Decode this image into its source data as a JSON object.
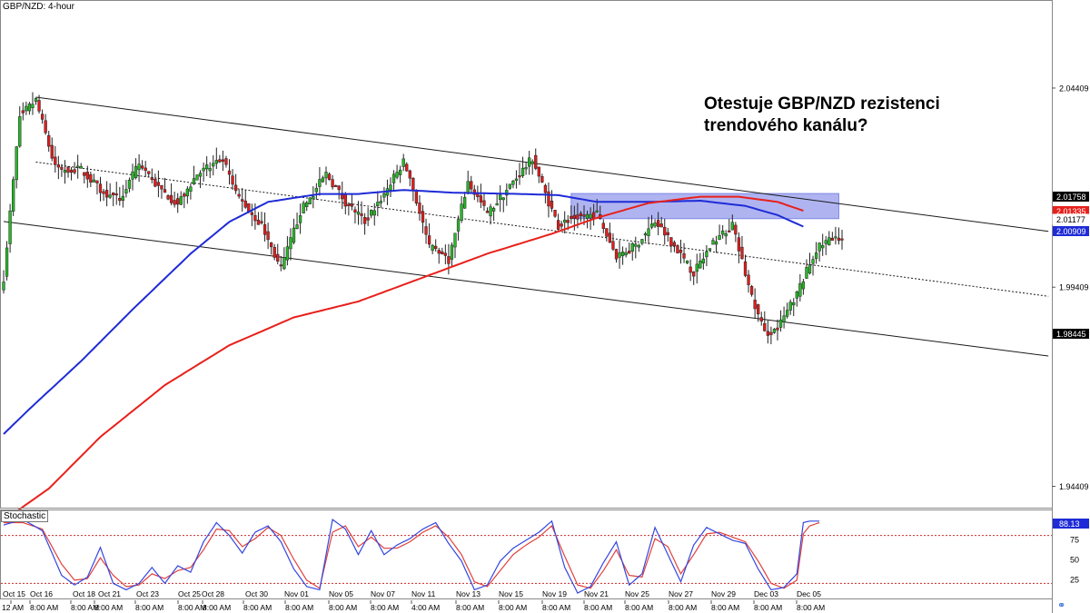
{
  "header": {
    "ticker": "GBP/NZD: 4-hour"
  },
  "annotation": {
    "lines": [
      "Otestuje GBP/NZD rezistenci",
      "trendového kanálu?"
    ]
  },
  "colors": {
    "up_candle": "#27b827",
    "down_candle": "#e01d1d",
    "ma_blue": "#1e2bd6",
    "ma_red": "#e8201b",
    "zone": "#9da3ee",
    "stoch_k": "#3346e0",
    "stoch_d": "#e0413c"
  },
  "price_axis": {
    "labels": [
      "2.04409",
      "1.99409",
      "1.94409"
    ],
    "tags": [
      {
        "text": "2.01758",
        "value": 2.01758,
        "bg": "#000000",
        "fg": "#ffffff"
      },
      {
        "text": "2.01335",
        "value": 2.01335,
        "bg": "#e8201b",
        "fg": "#ffffff"
      },
      {
        "text": "2.01177",
        "value": 2.01177,
        "bg": "#ffffff",
        "fg": "#000000"
      },
      {
        "text": "2.00909",
        "value": 2.00909,
        "bg": "#1e2bd6",
        "fg": "#ffffff"
      },
      {
        "text": "1.98445",
        "value": 1.98445,
        "bg": "#000000",
        "fg": "#ffffff"
      }
    ]
  },
  "stochastic": {
    "title": "Stochastic",
    "levels": [
      "75",
      "50",
      "25"
    ],
    "tags": [
      {
        "text": "88.13",
        "value": 88.13,
        "bg": "#1e2bd6",
        "fg": "#ffffff"
      }
    ]
  },
  "time_axis": {
    "date_labels": [
      "Oct 15",
      "Oct 16",
      "Oct 18",
      "Oct 21",
      "Oct 23",
      "Oct 25",
      "Oct 28",
      "Oct 30",
      "Nov 01",
      "Nov 05",
      "Nov 07",
      "Nov 11",
      "Nov 13",
      "Nov 15",
      "Nov 19",
      "Nov 21",
      "Nov 25",
      "Nov 27",
      "Nov 29",
      "Dec 03",
      "Dec 05"
    ],
    "time_labels": [
      "12 AM",
      "8:00 AM",
      "8:00 AM",
      "8:00 AM",
      "8:00 AM",
      "8:00 AM",
      "8:00 AM",
      "8:00 AM",
      "8:00 AM",
      "8:00 AM",
      "8:00 AM",
      "4:00 AM",
      "8:00 AM",
      "8:00 AM",
      "8:00 AM",
      "8:00 AM",
      "8:00 AM",
      "8:00 AM",
      "8:00 AM",
      "8:00 AM",
      "8:00 AM",
      "8:00 AM"
    ]
  },
  "chart_data": {
    "type": "candlestick",
    "title": "GBP/NZD: 4-hour",
    "ylim": [
      1.9385,
      2.0662
    ],
    "y_ticks": [
      2.04409,
      1.99409,
      1.94409
    ],
    "grid": false,
    "series": [
      {
        "name": "GBP/NZD",
        "type": "candlestick",
        "anchors": [
          [
            0,
            1.9965
          ],
          [
            5,
            2.037
          ],
          [
            10,
            2.041
          ],
          [
            16,
            2.024
          ],
          [
            24,
            2.0235
          ],
          [
            30,
            2.0185
          ],
          [
            36,
            2.016
          ],
          [
            42,
            2.025
          ],
          [
            48,
            2.019
          ],
          [
            54,
            2.015
          ],
          [
            60,
            2.0225
          ],
          [
            68,
            2.026
          ],
          [
            72,
            2.0175
          ],
          [
            80,
            2.0095
          ],
          [
            86,
            1.9985
          ],
          [
            92,
            2.013
          ],
          [
            100,
            2.0225
          ],
          [
            106,
            2.0155
          ],
          [
            112,
            2.0105
          ],
          [
            118,
            2.0175
          ],
          [
            124,
            2.0255
          ],
          [
            126,
            2.0215
          ],
          [
            132,
            2.004
          ],
          [
            138,
            2.001
          ],
          [
            144,
            2.0205
          ],
          [
            150,
            2.0125
          ],
          [
            156,
            2.0185
          ],
          [
            164,
            2.0265
          ],
          [
            168,
            2.0175
          ],
          [
            172,
            2.0095
          ],
          [
            176,
            2.0115
          ],
          [
            184,
            2.0125
          ],
          [
            190,
            2.002
          ],
          [
            196,
            2.0045
          ],
          [
            202,
            2.0105
          ],
          [
            208,
            2.0045
          ],
          [
            214,
            1.9975
          ],
          [
            220,
            2.0055
          ],
          [
            226,
            2.0095
          ],
          [
            232,
            1.9915
          ],
          [
            236,
            1.9825
          ],
          [
            240,
            1.9835
          ],
          [
            246,
            1.9925
          ],
          [
            252,
            2.0035
          ],
          [
            256,
            2.006
          ],
          [
            260,
            2.0055
          ]
        ]
      }
    ],
    "overlays": [
      {
        "name": "trend-channel-upper",
        "from": [
          10,
          2.0418
        ],
        "to": [
          324,
          2.0081
        ]
      },
      {
        "name": "trend-channel-middle",
        "from": [
          10,
          2.0255
        ],
        "to": [
          324,
          1.9918
        ]
      },
      {
        "name": "trend-channel-lower",
        "from": [
          0,
          2.0106
        ],
        "to": [
          324,
          1.9768
        ]
      },
      {
        "name": "resistance-zone",
        "x_range": [
          176,
          259
        ],
        "y_range": [
          2.0113,
          2.0176
        ]
      },
      {
        "name": "moving-average-blue",
        "anchors": [
          [
            0,
            1.9572
          ],
          [
            8,
            1.9635
          ],
          [
            24,
            1.9755
          ],
          [
            40,
            1.9885
          ],
          [
            58,
            2.0025
          ],
          [
            70,
            2.0105
          ],
          [
            82,
            2.0155
          ],
          [
            98,
            2.0175
          ],
          [
            110,
            2.0175
          ],
          [
            124,
            2.0185
          ],
          [
            140,
            2.0178
          ],
          [
            160,
            2.0175
          ],
          [
            172,
            2.0172
          ],
          [
            184,
            2.0155
          ],
          [
            200,
            2.0155
          ],
          [
            216,
            2.0158
          ],
          [
            230,
            2.0145
          ],
          [
            240,
            2.0122
          ],
          [
            248,
            2.0093
          ]
        ]
      },
      {
        "name": "moving-average-red",
        "anchors": [
          [
            0,
            1.9355
          ],
          [
            14,
            1.9435
          ],
          [
            30,
            1.9565
          ],
          [
            50,
            1.9695
          ],
          [
            70,
            1.9795
          ],
          [
            90,
            1.9865
          ],
          [
            110,
            1.9905
          ],
          [
            130,
            1.9965
          ],
          [
            150,
            2.0025
          ],
          [
            170,
            2.0075
          ],
          [
            184,
            2.0115
          ],
          [
            200,
            2.0152
          ],
          [
            216,
            2.0168
          ],
          [
            228,
            2.0168
          ],
          [
            240,
            2.0155
          ],
          [
            248,
            2.0133
          ]
        ]
      }
    ],
    "stochastic": {
      "range": [
        0,
        100
      ],
      "levels": [
        80,
        20
      ],
      "k_anchors": [
        [
          0,
          93
        ],
        [
          6,
          100
        ],
        [
          12,
          86
        ],
        [
          18,
          30
        ],
        [
          22,
          18
        ],
        [
          26,
          28
        ],
        [
          30,
          65
        ],
        [
          34,
          20
        ],
        [
          38,
          12
        ],
        [
          42,
          20
        ],
        [
          46,
          40
        ],
        [
          50,
          20
        ],
        [
          54,
          42
        ],
        [
          58,
          34
        ],
        [
          62,
          72
        ],
        [
          66,
          96
        ],
        [
          70,
          80
        ],
        [
          74,
          58
        ],
        [
          78,
          84
        ],
        [
          82,
          92
        ],
        [
          86,
          72
        ],
        [
          90,
          38
        ],
        [
          94,
          16
        ],
        [
          98,
          12
        ],
        [
          102,
          100
        ],
        [
          106,
          88
        ],
        [
          110,
          56
        ],
        [
          114,
          86
        ],
        [
          118,
          56
        ],
        [
          122,
          68
        ],
        [
          126,
          76
        ],
        [
          130,
          88
        ],
        [
          134,
          96
        ],
        [
          138,
          70
        ],
        [
          142,
          48
        ],
        [
          146,
          12
        ],
        [
          150,
          18
        ],
        [
          154,
          48
        ],
        [
          158,
          64
        ],
        [
          162,
          74
        ],
        [
          166,
          84
        ],
        [
          170,
          98
        ],
        [
          174,
          40
        ],
        [
          178,
          8
        ],
        [
          182,
          16
        ],
        [
          186,
          46
        ],
        [
          190,
          72
        ],
        [
          194,
          18
        ],
        [
          198,
          32
        ],
        [
          202,
          90
        ],
        [
          206,
          56
        ],
        [
          210,
          22
        ],
        [
          214,
          68
        ],
        [
          218,
          90
        ],
        [
          222,
          82
        ],
        [
          226,
          74
        ],
        [
          230,
          70
        ],
        [
          234,
          38
        ],
        [
          238,
          12
        ],
        [
          242,
          15
        ],
        [
          246,
          32
        ],
        [
          248,
          96
        ],
        [
          250,
          98
        ],
        [
          253,
          98
        ]
      ],
      "d_anchors": [
        [
          0,
          96
        ],
        [
          6,
          96
        ],
        [
          12,
          88
        ],
        [
          18,
          44
        ],
        [
          22,
          24
        ],
        [
          26,
          26
        ],
        [
          30,
          52
        ],
        [
          34,
          30
        ],
        [
          38,
          16
        ],
        [
          42,
          18
        ],
        [
          46,
          32
        ],
        [
          50,
          26
        ],
        [
          54,
          36
        ],
        [
          58,
          40
        ],
        [
          62,
          62
        ],
        [
          66,
          88
        ],
        [
          70,
          86
        ],
        [
          74,
          66
        ],
        [
          78,
          76
        ],
        [
          82,
          90
        ],
        [
          86,
          80
        ],
        [
          90,
          50
        ],
        [
          94,
          24
        ],
        [
          98,
          14
        ],
        [
          102,
          84
        ],
        [
          106,
          92
        ],
        [
          110,
          66
        ],
        [
          114,
          78
        ],
        [
          118,
          64
        ],
        [
          122,
          64
        ],
        [
          126,
          72
        ],
        [
          130,
          84
        ],
        [
          134,
          92
        ],
        [
          138,
          78
        ],
        [
          142,
          56
        ],
        [
          146,
          22
        ],
        [
          150,
          16
        ],
        [
          154,
          36
        ],
        [
          158,
          56
        ],
        [
          162,
          68
        ],
        [
          166,
          78
        ],
        [
          170,
          92
        ],
        [
          174,
          54
        ],
        [
          178,
          18
        ],
        [
          182,
          14
        ],
        [
          186,
          36
        ],
        [
          190,
          62
        ],
        [
          194,
          30
        ],
        [
          198,
          28
        ],
        [
          202,
          76
        ],
        [
          206,
          66
        ],
        [
          210,
          32
        ],
        [
          214,
          56
        ],
        [
          218,
          82
        ],
        [
          222,
          84
        ],
        [
          226,
          78
        ],
        [
          230,
          72
        ],
        [
          234,
          48
        ],
        [
          238,
          20
        ],
        [
          242,
          14
        ],
        [
          246,
          24
        ],
        [
          248,
          82
        ],
        [
          250,
          92
        ],
        [
          253,
          96
        ]
      ]
    }
  }
}
